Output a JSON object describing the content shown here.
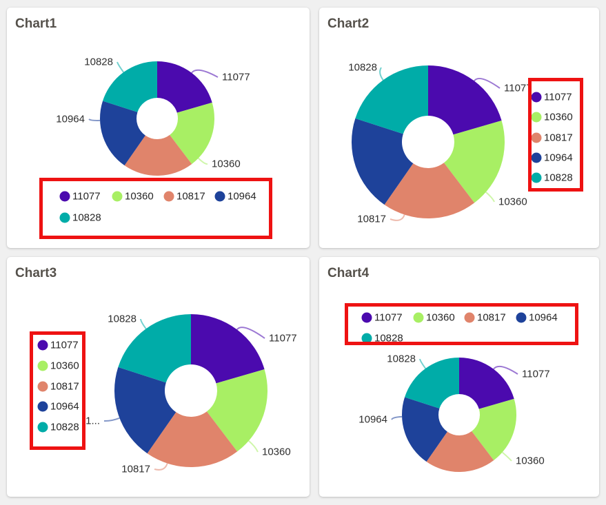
{
  "page": {
    "background": "#F0F0F0",
    "card_background": "#FFFFFF",
    "highlight_color": "#EE1212",
    "title_color": "#55514B",
    "label_color": "#2E2E2E"
  },
  "palette": [
    "#4B0AAE",
    "#A8EF64",
    "#E0846B",
    "#1E429A",
    "#00ACA8"
  ],
  "charts": [
    {
      "title": "Chart1",
      "legend_position": "bottom",
      "chart_data": {
        "type": "pie",
        "subtype": "donut",
        "labels": [
          "11077",
          "10360",
          "10817",
          "10964",
          "10828"
        ],
        "values": [
          11077,
          10360,
          10817,
          10964,
          10828
        ],
        "colors": [
          "#4B0AAE",
          "#A8EF64",
          "#E0846B",
          "#1E429A",
          "#00ACA8"
        ],
        "start_angle": 0,
        "direction": "clockwise",
        "legend": [
          "11077",
          "10360",
          "10817",
          "10964",
          "10828"
        ]
      },
      "callouts": [
        {
          "text": "10828",
          "series": 4
        },
        {
          "text": "11077",
          "series": 0
        },
        {
          "text": "10964",
          "series": 3
        },
        {
          "text": "10360",
          "series": 1
        }
      ]
    },
    {
      "title": "Chart2",
      "legend_position": "right",
      "chart_data": {
        "type": "pie",
        "subtype": "donut",
        "labels": [
          "11077",
          "10360",
          "10817",
          "10964",
          "10828"
        ],
        "values": [
          11077,
          10360,
          10817,
          10964,
          10828
        ],
        "colors": [
          "#4B0AAE",
          "#A8EF64",
          "#E0846B",
          "#1E429A",
          "#00ACA8"
        ],
        "start_angle": 0,
        "direction": "clockwise",
        "legend": [
          "11077",
          "10360",
          "10817",
          "10964",
          "10828"
        ]
      },
      "callouts": [
        {
          "text": "10828",
          "series": 4
        },
        {
          "text": "11077",
          "series": 0
        },
        {
          "text": "10360",
          "series": 1
        },
        {
          "text": "10817",
          "series": 2
        }
      ]
    },
    {
      "title": "Chart3",
      "legend_position": "left",
      "chart_data": {
        "type": "pie",
        "subtype": "donut",
        "labels": [
          "11077",
          "10360",
          "10817",
          "10964",
          "10828"
        ],
        "values": [
          11077,
          10360,
          10817,
          10964,
          10828
        ],
        "colors": [
          "#4B0AAE",
          "#A8EF64",
          "#E0846B",
          "#1E429A",
          "#00ACA8"
        ],
        "start_angle": 0,
        "direction": "clockwise",
        "legend": [
          "11077",
          "10360",
          "10817",
          "10964",
          "10828"
        ]
      },
      "callouts": [
        {
          "text": "10828",
          "series": 4
        },
        {
          "text": "11077",
          "series": 0
        },
        {
          "text": "1...",
          "series": 3
        },
        {
          "text": "10360",
          "series": 1
        },
        {
          "text": "10817",
          "series": 2
        }
      ]
    },
    {
      "title": "Chart4",
      "legend_position": "top",
      "chart_data": {
        "type": "pie",
        "subtype": "donut",
        "labels": [
          "11077",
          "10360",
          "10817",
          "10964",
          "10828"
        ],
        "values": [
          11077,
          10360,
          10817,
          10964,
          10828
        ],
        "colors": [
          "#4B0AAE",
          "#A8EF64",
          "#E0846B",
          "#1E429A",
          "#00ACA8"
        ],
        "start_angle": 0,
        "direction": "clockwise",
        "legend": [
          "11077",
          "10360",
          "10817",
          "10964",
          "10828"
        ]
      },
      "callouts": [
        {
          "text": "10828",
          "series": 4
        },
        {
          "text": "11077",
          "series": 0
        },
        {
          "text": "10964",
          "series": 3
        },
        {
          "text": "10360",
          "series": 1
        }
      ]
    }
  ]
}
